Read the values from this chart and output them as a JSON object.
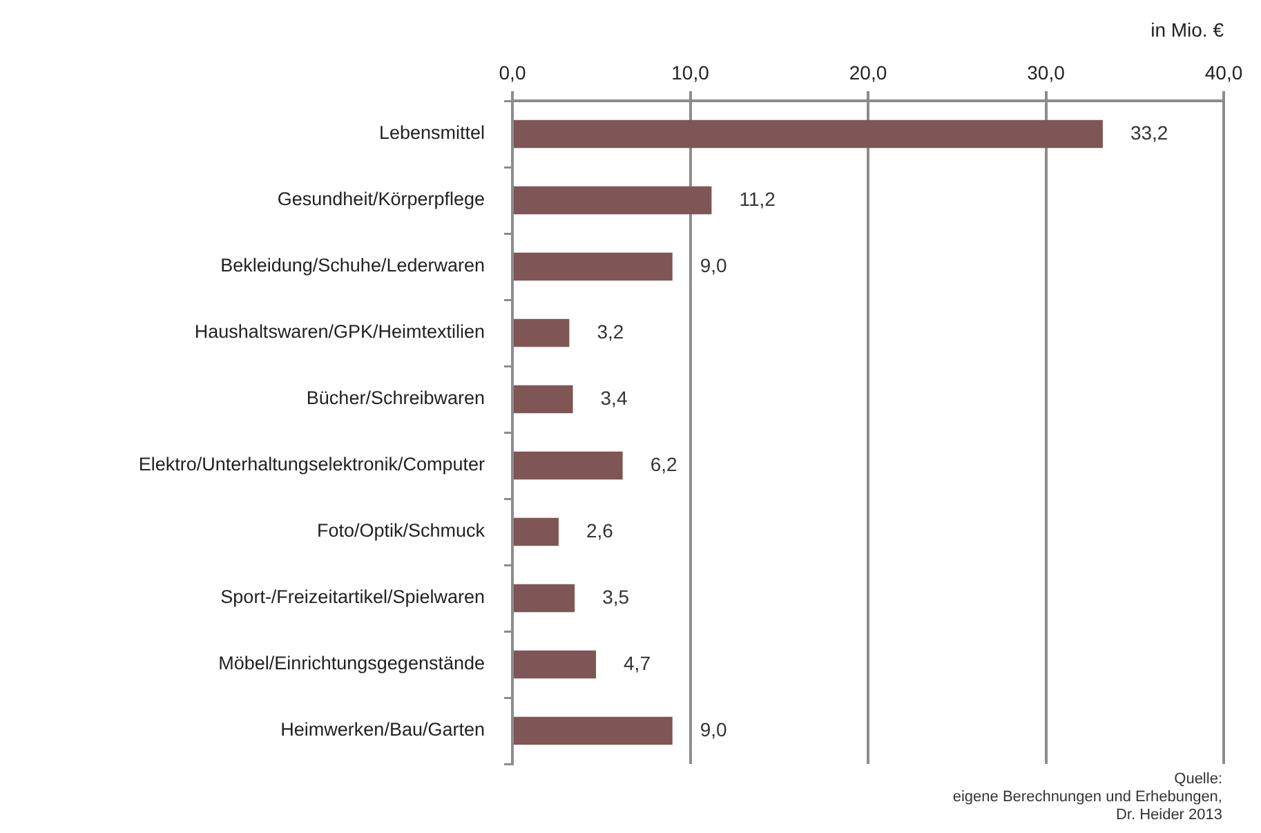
{
  "chart_data": {
    "type": "bar",
    "orientation": "horizontal",
    "xlabel": "in Mio. €",
    "categories": [
      "Lebensmittel",
      "Gesundheit/Körperpflege",
      "Bekleidung/Schuhe/Lederwaren",
      "Haushaltswaren/GPK/Heimtextilien",
      "Bücher/Schreibwaren",
      "Elektro/Unterhaltungselektronik/Computer",
      "Foto/Optik/Schmuck",
      "Sport-/Freizeitartikel/Spielwaren",
      "Möbel/Einrichtungsgegenstände",
      "Heimwerken/Bau/Garten"
    ],
    "values": [
      33.2,
      11.2,
      9.0,
      3.2,
      3.4,
      6.2,
      2.6,
      3.5,
      4.7,
      9.0
    ],
    "color": "#7f5555",
    "value_labels": [
      "33,2",
      "11,2",
      "9,0",
      "3,2",
      "3,4",
      "6,2",
      "2,6",
      "3,5",
      "4,7",
      "9,0"
    ],
    "xlim": [
      0,
      40
    ],
    "xticks": [
      {
        "value": 0,
        "label": "0,0"
      },
      {
        "value": 10,
        "label": "10,0"
      },
      {
        "value": 20,
        "label": "20,0"
      },
      {
        "value": 30,
        "label": "30,0"
      },
      {
        "value": 40,
        "label": "40,0"
      }
    ],
    "grid": "x",
    "annotations": [
      "Quelle:\neigene Berechnungen und Erhebungen,\nDr. Heider 2013"
    ]
  }
}
